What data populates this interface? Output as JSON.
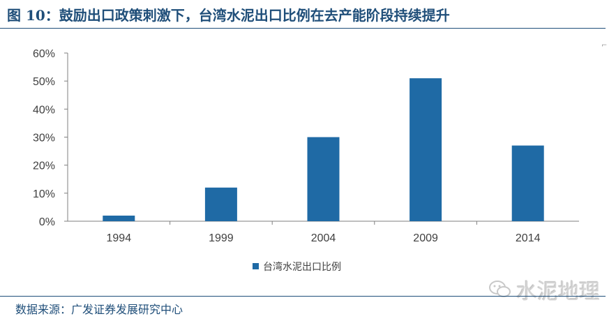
{
  "title": "图 10：鼓励出口政策刺激下，台湾水泥出口比例在去产能阶段持续提升",
  "source": "数据来源：广发证券发展研究中心",
  "watermark": "水泥地理",
  "colors": {
    "bar": "#1f6aa5",
    "title": "#1f4e79",
    "text": "#404040"
  },
  "chart_data": {
    "type": "bar",
    "categories": [
      "1994",
      "1999",
      "2004",
      "2009",
      "2014"
    ],
    "series": [
      {
        "name": "台湾水泥出口比例",
        "values": [
          2,
          12,
          30,
          51,
          27
        ]
      }
    ],
    "yticks": [
      "0%",
      "10%",
      "20%",
      "30%",
      "40%",
      "50%",
      "60%"
    ],
    "ylim": [
      0,
      60
    ],
    "grid": false,
    "legend": "bottom-center"
  }
}
